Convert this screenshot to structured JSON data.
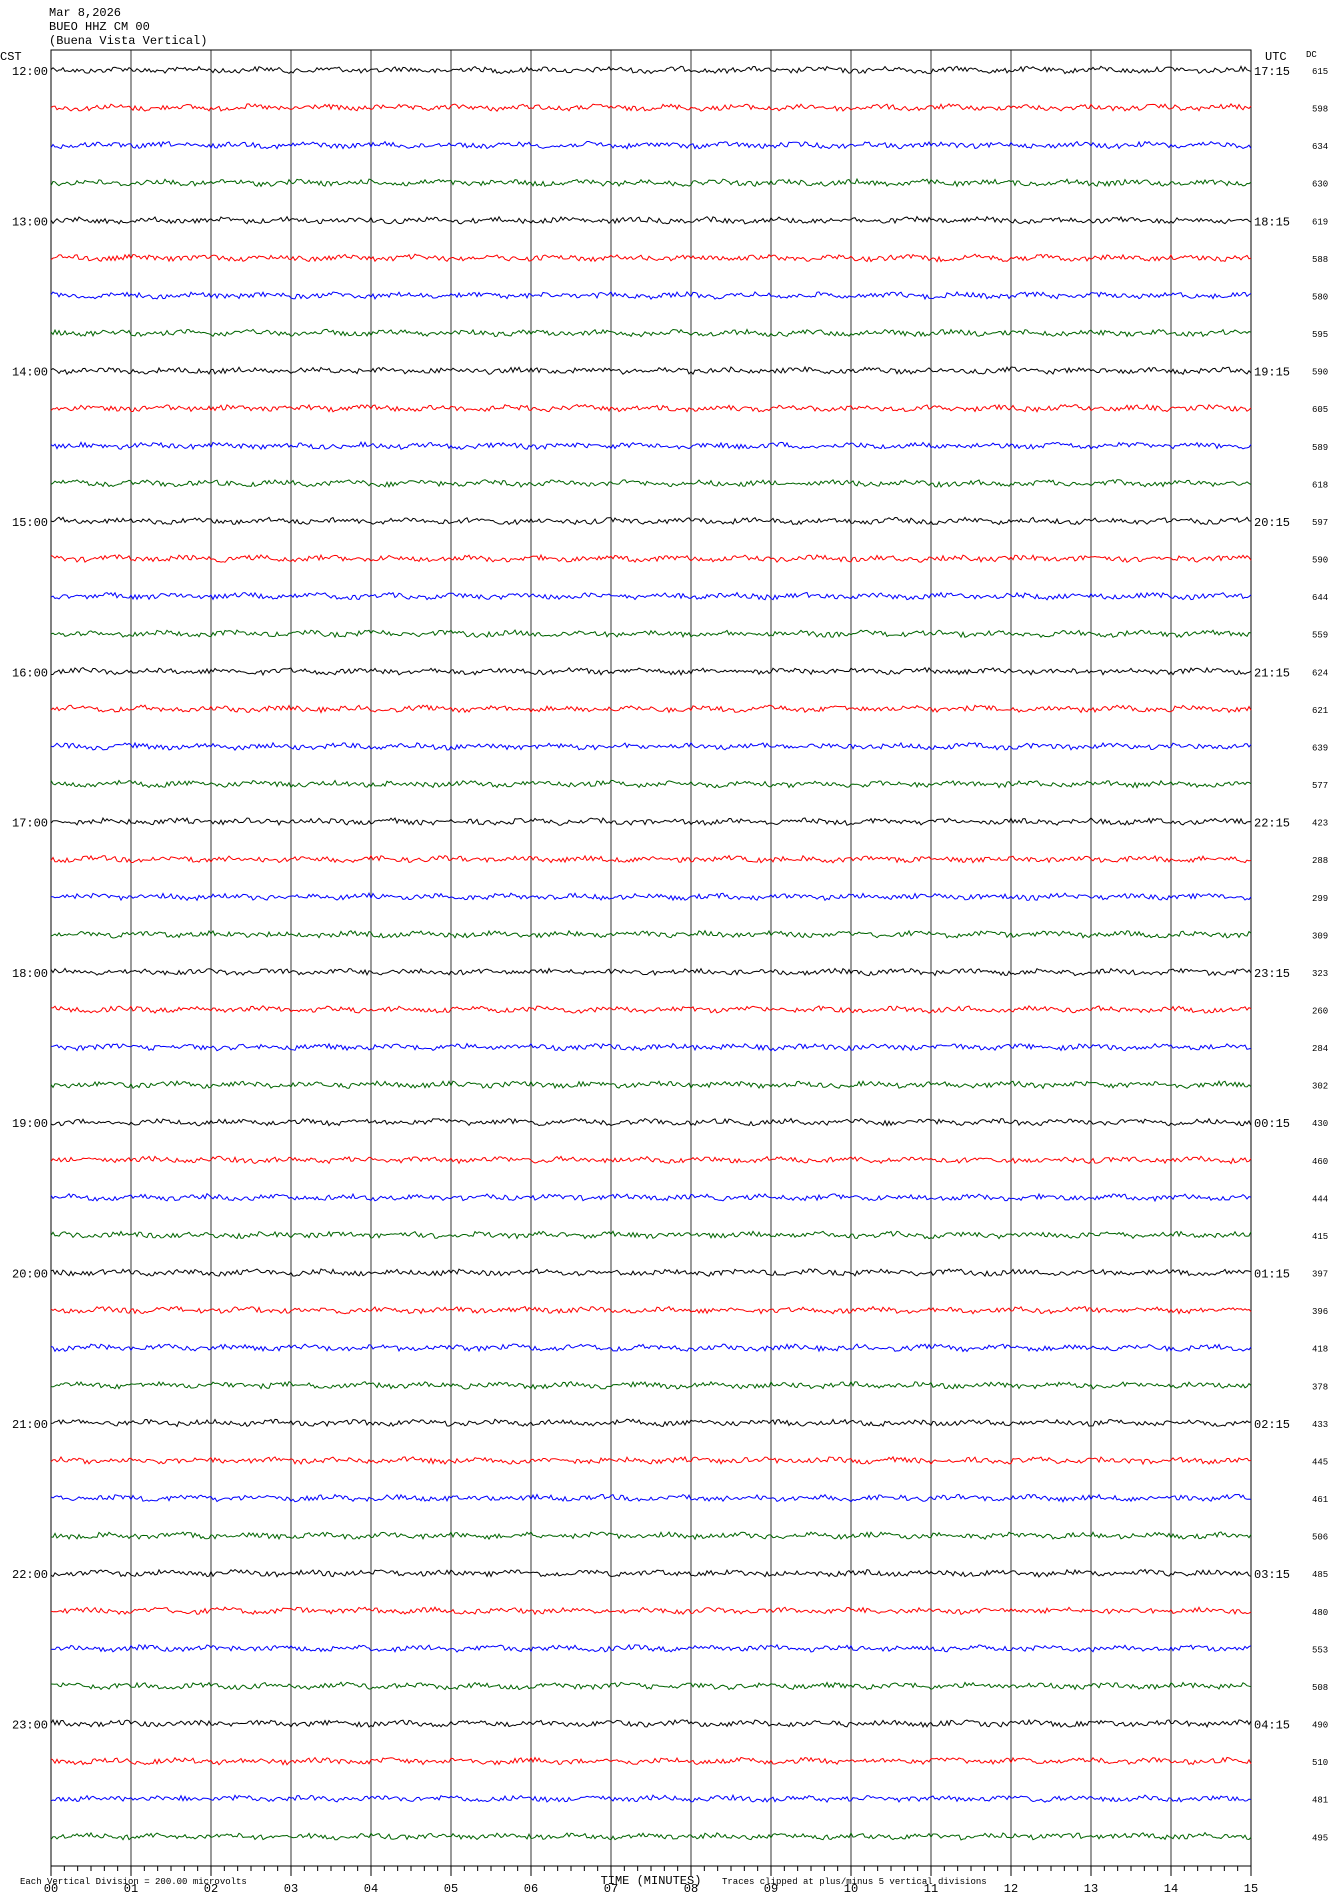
{
  "header": {
    "lines": [
      "Mar 8,2026",
      "BUEO HHZ CM 00",
      "(Buena Vista Vertical)"
    ]
  },
  "left_axis": {
    "title": "CST",
    "labels": [
      "12:00",
      "13:00",
      "14:00",
      "15:00",
      "16:00",
      "17:00",
      "18:00",
      "19:00",
      "20:00",
      "21:00",
      "22:00",
      "23:00"
    ]
  },
  "right_axis": {
    "title": "UTC",
    "labels": [
      "17:15",
      "18:15",
      "19:15",
      "20:15",
      "21:15",
      "22:15",
      "23:15",
      "00:15",
      "01:15",
      "02:15",
      "03:15",
      "04:15"
    ],
    "dc_title": "DC",
    "dc_values": [
      615,
      598,
      634,
      630,
      619,
      588,
      580,
      595,
      590,
      605,
      589,
      618,
      597,
      590,
      644,
      559,
      624,
      621,
      639,
      577,
      423,
      288,
      299,
      309,
      323,
      260,
      284,
      302,
      430,
      460,
      444,
      415,
      397,
      396,
      418,
      378,
      433,
      445,
      461,
      506,
      485,
      480,
      553,
      508,
      490,
      510,
      481,
      495
    ]
  },
  "x_axis": {
    "title": "TIME (MINUTES)",
    "ticks": [
      "00",
      "01",
      "02",
      "03",
      "04",
      "05",
      "06",
      "07",
      "08",
      "09",
      "10",
      "11",
      "12",
      "13",
      "14",
      "15"
    ]
  },
  "footer": {
    "scale_note": "Each Vertical Division =  200.00 microvolts",
    "clip_note": "Traces clipped at plus/minus 5 vertical divisions"
  },
  "trace_colors": [
    "#000000",
    "#ff0000",
    "#0000ff",
    "#006400"
  ]
}
